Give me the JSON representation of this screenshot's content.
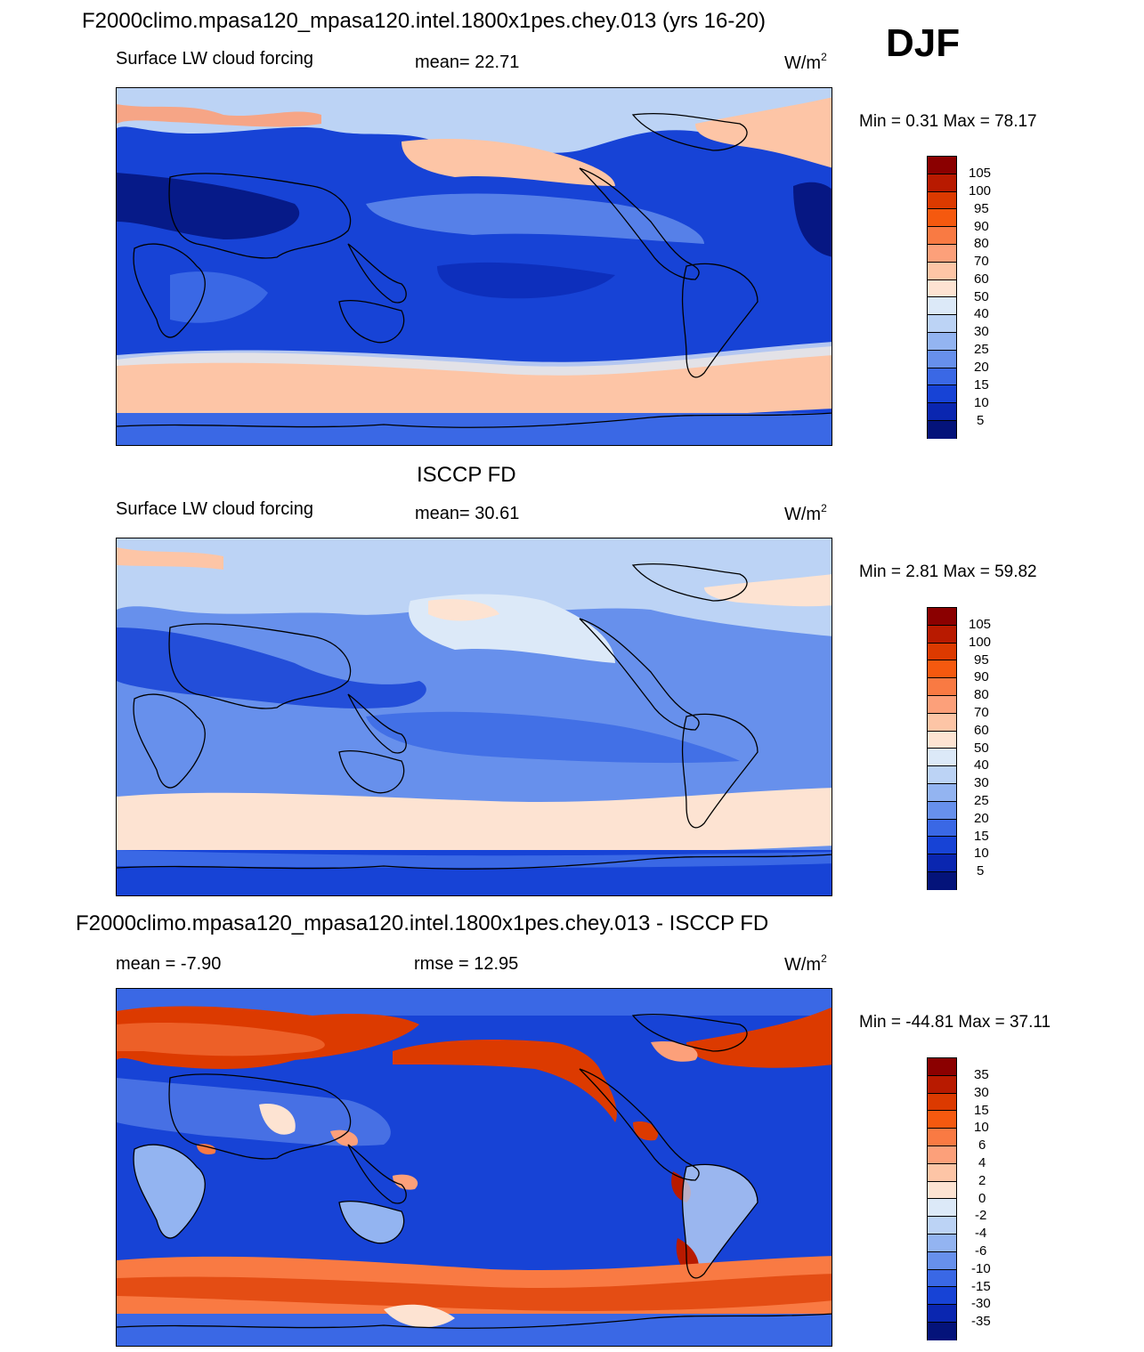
{
  "main_title": "F2000climo.mpasa120_mpasa120.intel.1800x1pes.chey.013 (yrs 16-20)",
  "season": "DJF",
  "panels": [
    {
      "left_label": "Surface LW cloud forcing",
      "center_label": "mean=  22.71",
      "units": "W/m",
      "units_sup": "2",
      "minmax": "Min =   0.31 Max =  78.17",
      "colorbar_labels": [
        "105",
        "100",
        "95",
        "90",
        "80",
        "70",
        "60",
        "50",
        "40",
        "30",
        "25",
        "20",
        "15",
        "10",
        "5"
      ]
    },
    {
      "title": "ISCCP FD",
      "left_label": "Surface LW cloud forcing",
      "center_label": "mean=  30.61",
      "units": "W/m",
      "units_sup": "2",
      "minmax": "Min =   2.81 Max =  59.82",
      "colorbar_labels": [
        "105",
        "100",
        "95",
        "90",
        "80",
        "70",
        "60",
        "50",
        "40",
        "30",
        "25",
        "20",
        "15",
        "10",
        "5"
      ]
    },
    {
      "title": "F2000climo.mpasa120_mpasa120.intel.1800x1pes.chey.013 - ISCCP FD",
      "left_label": "mean =  -7.90",
      "center_label": "rmse =  12.95",
      "units": "W/m",
      "units_sup": "2",
      "minmax": "Min = -44.81 Max =  37.11",
      "colorbar_labels": [
        "35",
        "30",
        "15",
        "10",
        "6",
        "4",
        "2",
        "0",
        "-2",
        "-4",
        "-6",
        "-10",
        "-15",
        "-30",
        "-35"
      ]
    }
  ],
  "colors": {
    "scale": [
      "#8b0000",
      "#b81a00",
      "#dc3a00",
      "#f5590f",
      "#f97a43",
      "#fca07a",
      "#fdc5a6",
      "#fde3d2",
      "#dce9f8",
      "#bcd3f5",
      "#93b4f1",
      "#6790ec",
      "#3a68e5",
      "#1743d6",
      "#0a26b0",
      "#04137a"
    ]
  }
}
